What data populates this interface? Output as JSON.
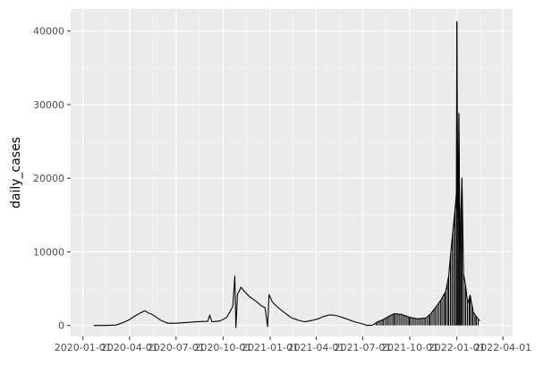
{
  "chart_data": {
    "type": "line",
    "title": "",
    "xlabel": "",
    "ylabel": "daily_cases",
    "x_ticks": [
      "2020-01-01",
      "2020-04-01",
      "2020-07-01",
      "2020-10-01",
      "2021-01-01",
      "2021-04-01",
      "2021-07-01",
      "2021-10-01",
      "2022-01-01",
      "2022-04-01"
    ],
    "y_ticks": [
      0,
      10000,
      20000,
      30000,
      40000
    ],
    "x_range": [
      "2019-12-08",
      "2022-04-20"
    ],
    "y_range": [
      -1500,
      43000
    ],
    "grid": true,
    "legend": "none",
    "colors": {
      "panel": "#ebebeb",
      "grid_major": "#ffffff",
      "grid_minor": "#f5f5f5",
      "line": "#000000",
      "text": "#4d4d4d"
    },
    "series": [
      {
        "values": [
          [
            "2020-01-22",
            0
          ],
          [
            "2020-02-15",
            0
          ],
          [
            "2020-03-05",
            50
          ],
          [
            "2020-03-20",
            400
          ],
          [
            "2020-04-01",
            800
          ],
          [
            "2020-04-12",
            1300
          ],
          [
            "2020-04-22",
            1700
          ],
          [
            "2020-05-01",
            2000
          ],
          [
            "2020-05-08",
            1700
          ],
          [
            "2020-05-15",
            1500
          ],
          [
            "2020-05-22",
            1200
          ],
          [
            "2020-06-01",
            700
          ],
          [
            "2020-06-15",
            300
          ],
          [
            "2020-07-01",
            300
          ],
          [
            "2020-07-20",
            400
          ],
          [
            "2020-08-10",
            500
          ],
          [
            "2020-09-01",
            550
          ],
          [
            "2020-09-05",
            1400
          ],
          [
            "2020-09-09",
            500
          ],
          [
            "2020-09-25",
            600
          ],
          [
            "2020-10-08",
            1100
          ],
          [
            "2020-10-14",
            1800
          ],
          [
            "2020-10-20",
            2600
          ],
          [
            "2020-10-24",
            6700
          ],
          [
            "2020-10-26",
            -300
          ],
          [
            "2020-10-29",
            4200
          ],
          [
            "2020-11-05",
            5200
          ],
          [
            "2020-11-12",
            4600
          ],
          [
            "2020-11-20",
            4000
          ],
          [
            "2020-11-28",
            3600
          ],
          [
            "2020-12-06",
            3200
          ],
          [
            "2020-12-14",
            2700
          ],
          [
            "2020-12-22",
            2400
          ],
          [
            "2020-12-27",
            -150
          ],
          [
            "2020-12-30",
            4200
          ],
          [
            "2021-01-05",
            3200
          ],
          [
            "2021-01-15",
            2500
          ],
          [
            "2021-01-28",
            1800
          ],
          [
            "2021-02-10",
            1100
          ],
          [
            "2021-02-25",
            700
          ],
          [
            "2021-03-10",
            500
          ],
          [
            "2021-03-25",
            700
          ],
          [
            "2021-04-05",
            900
          ],
          [
            "2021-04-15",
            1200
          ],
          [
            "2021-04-25",
            1400
          ],
          [
            "2021-05-05",
            1400
          ],
          [
            "2021-05-15",
            1250
          ],
          [
            "2021-05-30",
            900
          ],
          [
            "2021-06-15",
            500
          ],
          [
            "2021-07-01",
            200
          ],
          [
            "2021-07-10",
            0
          ],
          [
            "2021-07-20",
            50
          ],
          [
            "2021-07-30",
            500
          ],
          [
            "2021-08-10",
            800
          ],
          [
            "2021-08-20",
            1200
          ],
          [
            "2021-09-01",
            1600
          ],
          [
            "2021-09-15",
            1500
          ],
          [
            "2021-10-01",
            1100
          ],
          [
            "2021-10-15",
            900
          ],
          [
            "2021-11-01",
            1000
          ],
          [
            "2021-11-10",
            1500
          ],
          [
            "2021-11-20",
            2400
          ],
          [
            "2021-12-01",
            3500
          ],
          [
            "2021-12-10",
            4600
          ],
          [
            "2021-12-16",
            6700
          ],
          [
            "2021-12-20",
            9800
          ],
          [
            "2021-12-24",
            12700
          ],
          [
            "2021-12-28",
            15500
          ],
          [
            "2021-12-31",
            17800
          ],
          [
            "2022-01-01",
            41300
          ],
          [
            "2022-01-03",
            13000
          ],
          [
            "2022-01-05",
            28800
          ],
          [
            "2022-01-07",
            9000
          ],
          [
            "2022-01-09",
            15900
          ],
          [
            "2022-01-11",
            20000
          ],
          [
            "2022-01-14",
            7000
          ],
          [
            "2022-01-18",
            5400
          ],
          [
            "2022-01-22",
            3000
          ],
          [
            "2022-01-27",
            4100
          ],
          [
            "2022-02-02",
            1800
          ],
          [
            "2022-02-08",
            1200
          ],
          [
            "2022-02-15",
            600
          ]
        ]
      }
    ]
  }
}
